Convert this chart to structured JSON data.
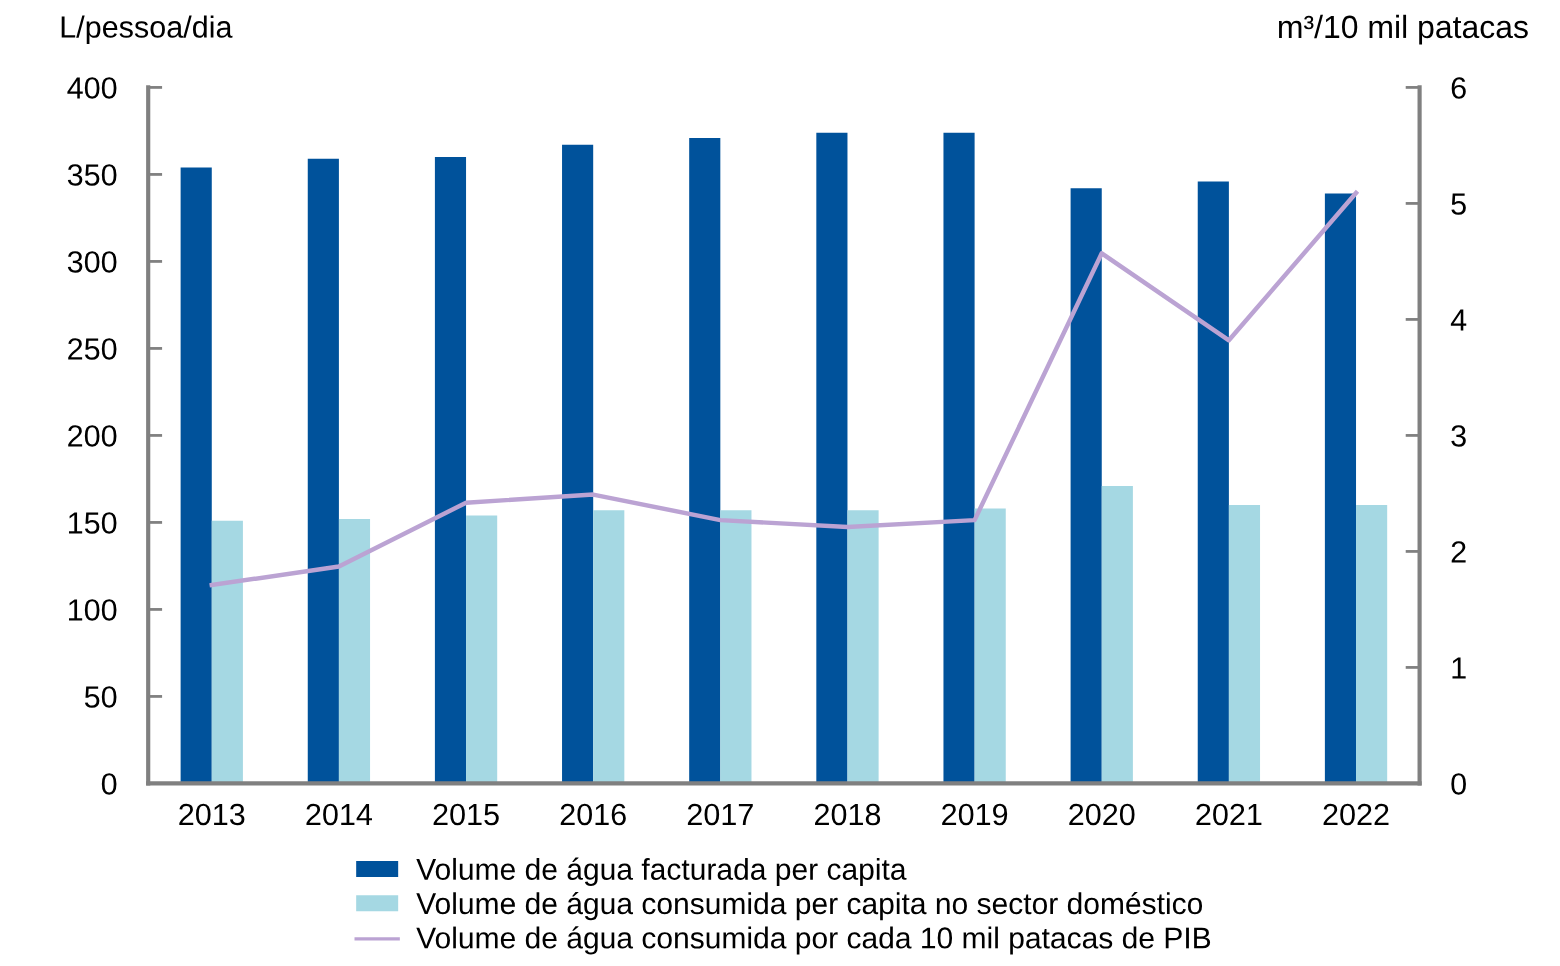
{
  "chart_data": {
    "type": "bar",
    "categories": [
      "2013",
      "2014",
      "2015",
      "2016",
      "2017",
      "2018",
      "2019",
      "2020",
      "2021",
      "2022"
    ],
    "ylabel": "L/pessoa/dia",
    "y2label": "m³/10 mil patacas",
    "ylim": [
      0,
      400
    ],
    "yticks": [
      0,
      50,
      100,
      150,
      200,
      250,
      300,
      350,
      400
    ],
    "y2lim": [
      0,
      6
    ],
    "y2ticks": [
      0,
      1,
      2,
      3,
      4,
      5,
      6
    ],
    "grid": false,
    "legend": "bottom",
    "series": [
      {
        "name": "Volume de água facturada per capita",
        "color": "#00529b",
        "values": [
          354,
          359,
          360,
          367,
          371,
          374,
          374,
          342,
          346,
          339
        ]
      },
      {
        "name": "Volume de água consumida per capita no sector doméstico",
        "color": "#a5d8e3",
        "values": [
          151,
          152,
          154,
          157,
          157,
          157,
          158,
          171,
          160,
          160
        ]
      },
      {
        "name": "Volume de água consumida por cada 10 mil patacas de PIB",
        "type": "line",
        "axis": "y2",
        "color": "#bba3d3",
        "values": [
          1.71,
          1.87,
          2.42,
          2.49,
          2.27,
          2.21,
          2.27,
          4.57,
          3.82,
          5.09
        ]
      }
    ]
  }
}
